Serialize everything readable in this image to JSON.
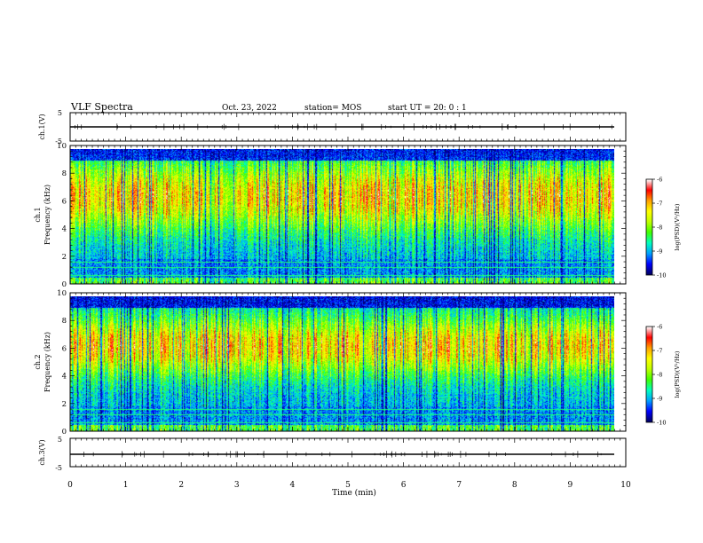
{
  "header": {
    "title": "VLF Spectra",
    "date": "Oct. 23, 2022",
    "station": "station= MOS",
    "start": "start  UT =   20: 0  : 1"
  },
  "chart_data": [
    {
      "type": "line",
      "name": "ch1-waveform",
      "ylabel": "ch.1(V)",
      "ylim": [
        -5,
        5
      ],
      "yticks": [
        "5",
        "-5"
      ],
      "xlim": [
        0,
        10
      ],
      "level": 0
    },
    {
      "type": "heatmap",
      "name": "ch1-spectrogram",
      "ylabel": "ch.1\nFrequency (kHz)",
      "ylabel_lines": [
        "ch.1",
        "Frequency (kHz)"
      ],
      "ylim": [
        0,
        10
      ],
      "yticks": [
        "0",
        "2",
        "4",
        "6",
        "8",
        "10"
      ],
      "xlim": [
        0,
        9.8
      ],
      "colorbar": {
        "label": "log(PSD)(V²/Hz)",
        "range": [
          -10,
          -6
        ],
        "ticks": [
          "-6",
          "-7",
          "-8",
          "-9",
          "-10"
        ]
      }
    },
    {
      "type": "heatmap",
      "name": "ch2-spectrogram",
      "ylabel": "ch.2\nFrequency (kHz)",
      "ylabel_lines": [
        "ch.2",
        "Frequency (kHz)"
      ],
      "ylim": [
        0,
        10
      ],
      "yticks": [
        "0",
        "2",
        "4",
        "6",
        "8",
        "10"
      ],
      "xlim": [
        0,
        9.8
      ],
      "colorbar": {
        "label": "log(PSD)(V²/Hz)",
        "range": [
          -10,
          -6
        ],
        "ticks": [
          "-6",
          "-7",
          "-8",
          "-9",
          "-10"
        ]
      }
    },
    {
      "type": "line",
      "name": "ch3-waveform",
      "ylabel": "ch.3(V)",
      "ylim": [
        -5,
        5
      ],
      "yticks": [
        "5",
        "-5"
      ],
      "xlim": [
        0,
        10
      ],
      "level": 0
    }
  ],
  "xaxis": {
    "label": "Time  (min)",
    "ticks": [
      "0",
      "1",
      "2",
      "3",
      "4",
      "5",
      "6",
      "7",
      "8",
      "9",
      "10"
    ]
  },
  "colors": {
    "colormap": [
      "#000060",
      "#0000ff",
      "#00a0ff",
      "#00ffc0",
      "#40ff00",
      "#c0ff00",
      "#ffff00",
      "#ffa000",
      "#ff0000",
      "#ffffff"
    ]
  }
}
